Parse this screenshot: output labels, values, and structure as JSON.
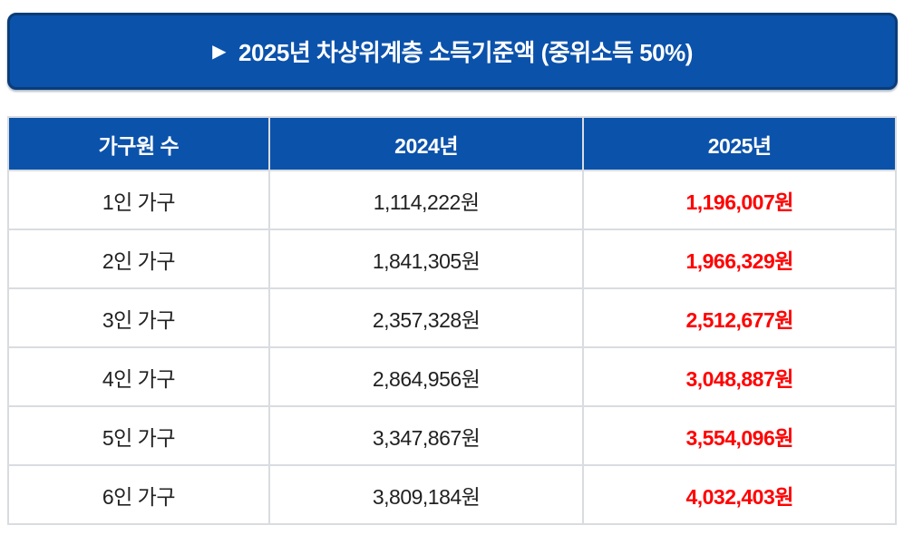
{
  "banner": {
    "icon": "▶",
    "title": "2025년 차상위계층 소득기준액 (중위소득 50%)"
  },
  "table": {
    "headers": [
      "가구원 수",
      "2024년",
      "2025년"
    ],
    "rows": [
      [
        "1인 가구",
        "1,114,222원",
        "1,196,007원"
      ],
      [
        "2인 가구",
        "1,841,305원",
        "1,966,329원"
      ],
      [
        "3인 가구",
        "2,357,328원",
        "2,512,677원"
      ],
      [
        "4인 가구",
        "2,864,956원",
        "3,048,887원"
      ],
      [
        "5인 가구",
        "3,347,867원",
        "3,554,096원"
      ],
      [
        "6인 가구",
        "3,809,184원",
        "4,032,403원"
      ]
    ]
  },
  "colors": {
    "primary_blue": "#0b52ab",
    "banner_border": "#0a3c78",
    "highlight_red": "#ff0000",
    "text_black": "#212121",
    "grid_gray": "#d9dce0"
  },
  "chart_data": {
    "type": "table",
    "title": "2025년 차상위계층 소득기준액 (중위소득 50%)",
    "columns": [
      "가구원 수",
      "2024년",
      "2025년"
    ],
    "categories": [
      "1인 가구",
      "2인 가구",
      "3인 가구",
      "4인 가구",
      "5인 가구",
      "6인 가구"
    ],
    "series": [
      {
        "name": "2024년",
        "values": [
          1114222,
          1841305,
          2357328,
          2864956,
          3347867,
          3809184
        ],
        "unit": "원",
        "color": "#212121"
      },
      {
        "name": "2025년",
        "values": [
          1196007,
          1966329,
          2512677,
          3048887,
          3554096,
          4032403
        ],
        "unit": "원",
        "color": "#ff0000"
      }
    ]
  }
}
